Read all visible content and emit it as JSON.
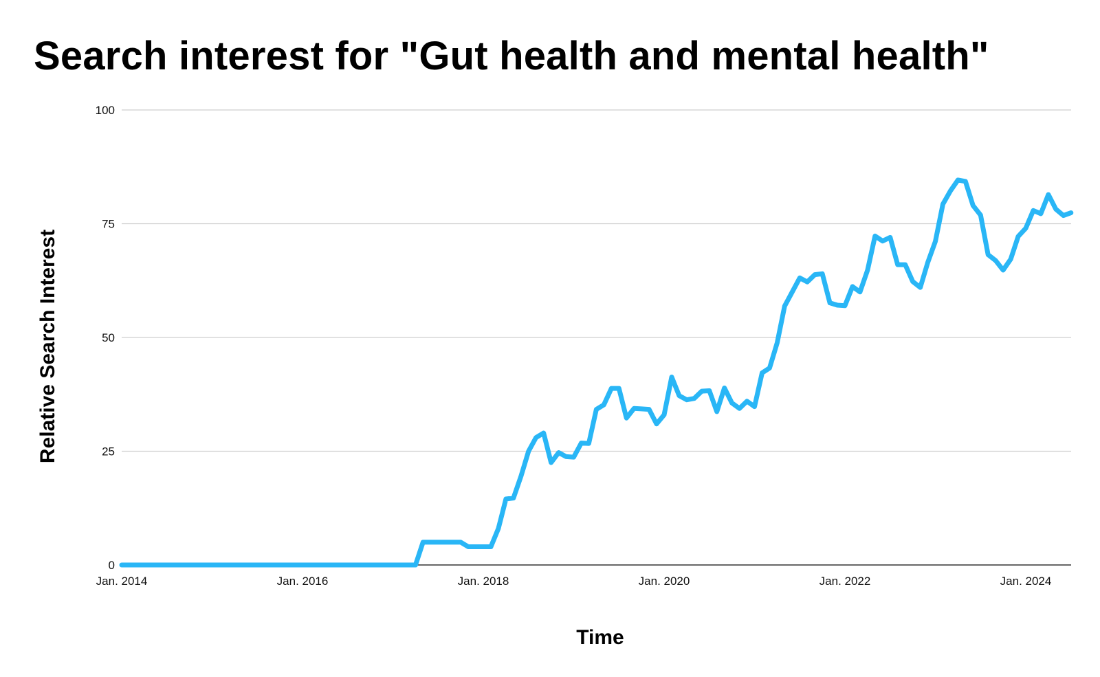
{
  "chart_data": {
    "type": "line",
    "title": "Search interest for \"Gut health and mental health\"",
    "xlabel": "Time",
    "ylabel": "Relative Search Interest",
    "ylim": [
      0,
      100
    ],
    "yticks": [
      "0",
      "25",
      "50",
      "75",
      "100"
    ],
    "xticks": [
      {
        "date": "2014-01",
        "label": "Jan. 2014"
      },
      {
        "date": "2016-01",
        "label": "Jan. 2016"
      },
      {
        "date": "2018-01",
        "label": "Jan. 2018"
      },
      {
        "date": "2020-01",
        "label": "Jan. 2020"
      },
      {
        "date": "2022-01",
        "label": "Jan. 2022"
      },
      {
        "date": "2024-01",
        "label": "Jan. 2024"
      }
    ],
    "xlim": [
      "2014-01",
      "2024-06"
    ],
    "grid": true,
    "series": [
      {
        "color": "#29B6F6",
        "points": [
          [
            "2014-01",
            0
          ],
          [
            "2017-04",
            0
          ],
          [
            "2017-05",
            5
          ],
          [
            "2017-06",
            5
          ],
          [
            "2017-07",
            5
          ],
          [
            "2017-08",
            5
          ],
          [
            "2017-09",
            5
          ],
          [
            "2017-10",
            5
          ],
          [
            "2017-11",
            4
          ],
          [
            "2017-12",
            4
          ],
          [
            "2018-01",
            4
          ],
          [
            "2018-02",
            4
          ],
          [
            "2018-03",
            8
          ],
          [
            "2018-04",
            14.5
          ],
          [
            "2018-05",
            14.7
          ],
          [
            "2018-06",
            19.5
          ],
          [
            "2018-07",
            25
          ],
          [
            "2018-08",
            28
          ],
          [
            "2018-09",
            29
          ],
          [
            "2018-10",
            22.5
          ],
          [
            "2018-11",
            24.7
          ],
          [
            "2018-12",
            23.8
          ],
          [
            "2019-01",
            23.7
          ],
          [
            "2019-02",
            26.8
          ],
          [
            "2019-03",
            26.7
          ],
          [
            "2019-04",
            34.2
          ],
          [
            "2019-05",
            35.2
          ],
          [
            "2019-06",
            38.8
          ],
          [
            "2019-07",
            38.8
          ],
          [
            "2019-08",
            32.3
          ],
          [
            "2019-09",
            34.4
          ],
          [
            "2019-10",
            34.3
          ],
          [
            "2019-11",
            34.2
          ],
          [
            "2019-12",
            31
          ],
          [
            "2020-01",
            33
          ],
          [
            "2020-02",
            41.3
          ],
          [
            "2020-03",
            37.2
          ],
          [
            "2020-04",
            36.3
          ],
          [
            "2020-05",
            36.6
          ],
          [
            "2020-06",
            38.2
          ],
          [
            "2020-07",
            38.3
          ],
          [
            "2020-08",
            33.7
          ],
          [
            "2020-09",
            38.9
          ],
          [
            "2020-10",
            35.6
          ],
          [
            "2020-11",
            34.4
          ],
          [
            "2020-12",
            36
          ],
          [
            "2021-01",
            34.8
          ],
          [
            "2021-02",
            42.2
          ],
          [
            "2021-03",
            43.3
          ],
          [
            "2021-04",
            48.8
          ],
          [
            "2021-05",
            56.9
          ],
          [
            "2021-06",
            60
          ],
          [
            "2021-07",
            63.1
          ],
          [
            "2021-08",
            62.2
          ],
          [
            "2021-09",
            63.8
          ],
          [
            "2021-10",
            64
          ],
          [
            "2021-11",
            57.6
          ],
          [
            "2021-12",
            57.1
          ],
          [
            "2022-01",
            57
          ],
          [
            "2022-02",
            61.2
          ],
          [
            "2022-03",
            60
          ],
          [
            "2022-04",
            64.8
          ],
          [
            "2022-05",
            72.3
          ],
          [
            "2022-06",
            71.2
          ],
          [
            "2022-07",
            72
          ],
          [
            "2022-08",
            66
          ],
          [
            "2022-09",
            66
          ],
          [
            "2022-10",
            62.3
          ],
          [
            "2022-11",
            61
          ],
          [
            "2022-12",
            66.5
          ],
          [
            "2023-01",
            71.1
          ],
          [
            "2023-02",
            79.3
          ],
          [
            "2023-03",
            82.2
          ],
          [
            "2023-04",
            84.6
          ],
          [
            "2023-05",
            84.3
          ],
          [
            "2023-06",
            79
          ],
          [
            "2023-07",
            76.9
          ],
          [
            "2023-08",
            68.2
          ],
          [
            "2023-09",
            66.9
          ],
          [
            "2023-10",
            64.8
          ],
          [
            "2023-11",
            67.2
          ],
          [
            "2023-12",
            72.2
          ],
          [
            "2024-01",
            74
          ],
          [
            "2024-02",
            77.9
          ],
          [
            "2024-03",
            77.2
          ],
          [
            "2024-04",
            81.4
          ],
          [
            "2024-05",
            78.2
          ],
          [
            "2024-06",
            76.8
          ],
          [
            "2024-07",
            77.4
          ]
        ]
      }
    ]
  }
}
